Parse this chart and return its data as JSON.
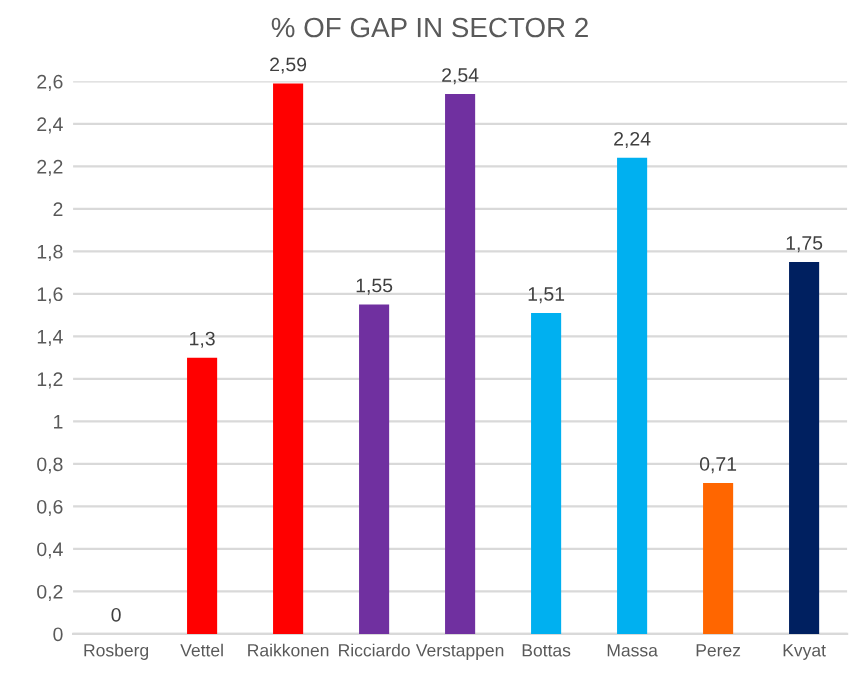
{
  "chart_data": {
    "type": "bar",
    "title": "% OF GAP IN SECTOR 2",
    "categories": [
      "Rosberg",
      "Vettel",
      "Raikkonen",
      "Ricciardo",
      "Verstappen",
      "Bottas",
      "Massa",
      "Perez",
      "Kvyat"
    ],
    "values": [
      0,
      1.3,
      2.59,
      1.55,
      2.54,
      1.51,
      2.24,
      0.71,
      1.75
    ],
    "colors": [
      "#a6a6a6",
      "#ff0000",
      "#ff0000",
      "#7030a0",
      "#7030a0",
      "#00b0f0",
      "#00b0f0",
      "#ff6600",
      "#002060"
    ],
    "value_labels": [
      "0",
      "1,3",
      "2,59",
      "1,55",
      "2,54",
      "1,51",
      "2,24",
      "0,71",
      "1,75"
    ],
    "ylim": [
      0,
      2.6
    ],
    "yticks": [
      0,
      {
        "value": 0.2,
        "label": "0,2"
      },
      {
        "value": 0.4,
        "label": "0,4"
      },
      {
        "value": 0.6,
        "label": "0,6"
      },
      {
        "value": 0.8,
        "label": "0,8"
      },
      1,
      {
        "value": 1.2,
        "label": "1,2"
      },
      {
        "value": 1.4,
        "label": "1,4"
      },
      {
        "value": 1.6,
        "label": "1,6"
      },
      {
        "value": 1.8,
        "label": "1,8"
      },
      2,
      {
        "value": 2.2,
        "label": "2,2"
      },
      {
        "value": 2.4,
        "label": "2,4"
      },
      {
        "value": 2.6,
        "label": "2,6"
      }
    ],
    "grid": "y"
  }
}
